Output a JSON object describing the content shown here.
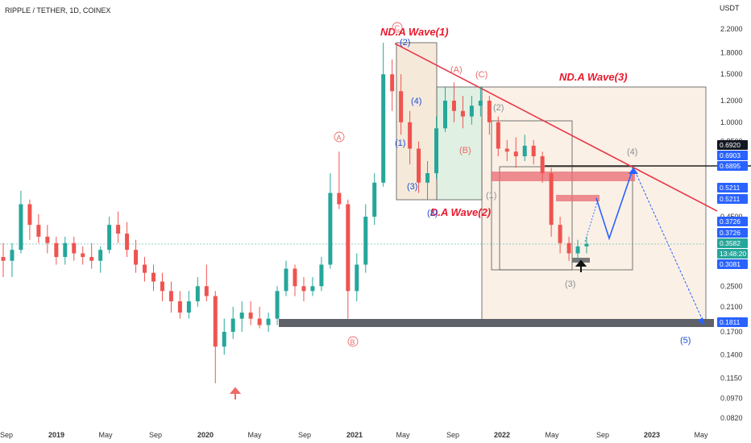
{
  "header": {
    "symbol": "RIPPLE / TETHER, 1D, COINEX",
    "currency": "USDT"
  },
  "chart_data": {
    "type": "candlestick",
    "y_scale": "log",
    "y_ticks": [
      "2.2000",
      "1.8000",
      "1.5000",
      "1.2000",
      "1.0000",
      "0.8500",
      "0.6920",
      "0.6903",
      "0.6895",
      "0.5211",
      "0.5211",
      "0.4500",
      "0.3726",
      "0.3726",
      "0.3582",
      "0.3081",
      "0.2500",
      "0.2100",
      "0.1811",
      "0.1700",
      "0.1400",
      "0.1150",
      "0.0970",
      "0.0820"
    ],
    "y_tick_values": [
      2.2,
      1.8,
      1.5,
      1.2,
      1.0,
      0.85,
      0.692,
      0.6903,
      0.6895,
      0.5211,
      0.5211,
      0.45,
      0.3726,
      0.3726,
      0.3582,
      0.3081,
      0.25,
      0.21,
      0.1811,
      0.17,
      0.14,
      0.115,
      0.097,
      0.082
    ],
    "x_ticks": [
      "Sep",
      "2019",
      "May",
      "Sep",
      "2020",
      "May",
      "Sep",
      "2021",
      "May",
      "Sep",
      "2022",
      "May",
      "Sep",
      "2023",
      "May"
    ],
    "price_badges": [
      {
        "label": "0.6920",
        "value": 0.692,
        "color": "#131722"
      },
      {
        "label": "0.6903",
        "value": 0.6903,
        "color": "#2962ff"
      },
      {
        "label": "0.6895",
        "value": 0.6895,
        "color": "#2962ff"
      },
      {
        "label": "0.5211",
        "value": 0.5211,
        "color": "#2962ff"
      },
      {
        "label": "0.5211",
        "value": 0.5211,
        "color": "#2962ff"
      },
      {
        "label": "0.3726",
        "value": 0.3726,
        "color": "#2962ff"
      },
      {
        "label": "0.3726",
        "value": 0.3726,
        "color": "#2962ff"
      },
      {
        "label": "0.3582",
        "value": 0.3582,
        "color": "#26a69a"
      },
      {
        "label": "13:48:20",
        "value": 0.3582,
        "color": "#26a69a"
      },
      {
        "label": "0.3081",
        "value": 0.3081,
        "color": "#2962ff"
      },
      {
        "label": "0.1811",
        "value": 0.1811,
        "color": "#2962ff"
      }
    ],
    "last_price": 0.3582,
    "candles": [
      {
        "t": 0,
        "o": 0.32,
        "h": 0.36,
        "l": 0.27,
        "c": 0.31
      },
      {
        "t": 1,
        "o": 0.31,
        "h": 0.36,
        "l": 0.27,
        "c": 0.34
      },
      {
        "t": 2,
        "o": 0.34,
        "h": 0.56,
        "l": 0.33,
        "c": 0.5
      },
      {
        "t": 3,
        "o": 0.5,
        "h": 0.52,
        "l": 0.37,
        "c": 0.42
      },
      {
        "t": 4,
        "o": 0.42,
        "h": 0.46,
        "l": 0.36,
        "c": 0.38
      },
      {
        "t": 5,
        "o": 0.38,
        "h": 0.42,
        "l": 0.33,
        "c": 0.36
      },
      {
        "t": 6,
        "o": 0.36,
        "h": 0.38,
        "l": 0.3,
        "c": 0.32
      },
      {
        "t": 7,
        "o": 0.32,
        "h": 0.38,
        "l": 0.3,
        "c": 0.36
      },
      {
        "t": 8,
        "o": 0.36,
        "h": 0.38,
        "l": 0.31,
        "c": 0.33
      },
      {
        "t": 9,
        "o": 0.33,
        "h": 0.35,
        "l": 0.3,
        "c": 0.32
      },
      {
        "t": 10,
        "o": 0.32,
        "h": 0.36,
        "l": 0.29,
        "c": 0.31
      },
      {
        "t": 11,
        "o": 0.31,
        "h": 0.35,
        "l": 0.28,
        "c": 0.34
      },
      {
        "t": 12,
        "o": 0.34,
        "h": 0.45,
        "l": 0.33,
        "c": 0.42
      },
      {
        "t": 13,
        "o": 0.42,
        "h": 0.47,
        "l": 0.36,
        "c": 0.39
      },
      {
        "t": 14,
        "o": 0.39,
        "h": 0.43,
        "l": 0.32,
        "c": 0.34
      },
      {
        "t": 15,
        "o": 0.34,
        "h": 0.37,
        "l": 0.28,
        "c": 0.3
      },
      {
        "t": 16,
        "o": 0.3,
        "h": 0.32,
        "l": 0.26,
        "c": 0.28
      },
      {
        "t": 17,
        "o": 0.28,
        "h": 0.3,
        "l": 0.24,
        "c": 0.26
      },
      {
        "t": 18,
        "o": 0.26,
        "h": 0.28,
        "l": 0.22,
        "c": 0.24
      },
      {
        "t": 19,
        "o": 0.24,
        "h": 0.26,
        "l": 0.2,
        "c": 0.22
      },
      {
        "t": 20,
        "o": 0.22,
        "h": 0.24,
        "l": 0.19,
        "c": 0.2
      },
      {
        "t": 21,
        "o": 0.2,
        "h": 0.24,
        "l": 0.19,
        "c": 0.22
      },
      {
        "t": 22,
        "o": 0.22,
        "h": 0.27,
        "l": 0.21,
        "c": 0.25
      },
      {
        "t": 23,
        "o": 0.25,
        "h": 0.3,
        "l": 0.22,
        "c": 0.23
      },
      {
        "t": 24,
        "o": 0.23,
        "h": 0.24,
        "l": 0.11,
        "c": 0.15
      },
      {
        "t": 25,
        "o": 0.15,
        "h": 0.19,
        "l": 0.14,
        "c": 0.17
      },
      {
        "t": 26,
        "o": 0.17,
        "h": 0.21,
        "l": 0.16,
        "c": 0.19
      },
      {
        "t": 27,
        "o": 0.19,
        "h": 0.22,
        "l": 0.17,
        "c": 0.2
      },
      {
        "t": 28,
        "o": 0.2,
        "h": 0.22,
        "l": 0.18,
        "c": 0.19
      },
      {
        "t": 29,
        "o": 0.19,
        "h": 0.21,
        "l": 0.175,
        "c": 0.18
      },
      {
        "t": 30,
        "o": 0.18,
        "h": 0.2,
        "l": 0.17,
        "c": 0.19
      },
      {
        "t": 31,
        "o": 0.19,
        "h": 0.25,
        "l": 0.18,
        "c": 0.24
      },
      {
        "t": 32,
        "o": 0.24,
        "h": 0.31,
        "l": 0.23,
        "c": 0.29
      },
      {
        "t": 33,
        "o": 0.29,
        "h": 0.3,
        "l": 0.23,
        "c": 0.25
      },
      {
        "t": 34,
        "o": 0.25,
        "h": 0.27,
        "l": 0.22,
        "c": 0.24
      },
      {
        "t": 35,
        "o": 0.24,
        "h": 0.27,
        "l": 0.23,
        "c": 0.25
      },
      {
        "t": 36,
        "o": 0.25,
        "h": 0.32,
        "l": 0.24,
        "c": 0.3
      },
      {
        "t": 37,
        "o": 0.3,
        "h": 0.65,
        "l": 0.29,
        "c": 0.55
      },
      {
        "t": 38,
        "o": 0.55,
        "h": 0.78,
        "l": 0.48,
        "c": 0.5
      },
      {
        "t": 39,
        "o": 0.5,
        "h": 0.52,
        "l": 0.19,
        "c": 0.24
      },
      {
        "t": 40,
        "o": 0.24,
        "h": 0.33,
        "l": 0.22,
        "c": 0.3
      },
      {
        "t": 41,
        "o": 0.3,
        "h": 0.5,
        "l": 0.28,
        "c": 0.45
      },
      {
        "t": 42,
        "o": 0.45,
        "h": 0.65,
        "l": 0.42,
        "c": 0.6
      },
      {
        "t": 43,
        "o": 0.6,
        "h": 1.96,
        "l": 0.58,
        "c": 1.5
      },
      {
        "t": 44,
        "o": 1.5,
        "h": 1.7,
        "l": 1.1,
        "c": 1.3
      },
      {
        "t": 45,
        "o": 1.3,
        "h": 1.5,
        "l": 0.9,
        "c": 1.0
      },
      {
        "t": 46,
        "o": 1.0,
        "h": 1.1,
        "l": 0.7,
        "c": 0.8
      },
      {
        "t": 47,
        "o": 0.8,
        "h": 0.85,
        "l": 0.55,
        "c": 0.6
      },
      {
        "t": 48,
        "o": 0.6,
        "h": 0.72,
        "l": 0.52,
        "c": 0.65
      },
      {
        "t": 49,
        "o": 0.65,
        "h": 1.05,
        "l": 0.62,
        "c": 0.95
      },
      {
        "t": 50,
        "o": 0.95,
        "h": 1.35,
        "l": 0.92,
        "c": 1.2
      },
      {
        "t": 51,
        "o": 1.2,
        "h": 1.4,
        "l": 1.0,
        "c": 1.1
      },
      {
        "t": 52,
        "o": 1.1,
        "h": 1.25,
        "l": 0.95,
        "c": 1.05
      },
      {
        "t": 53,
        "o": 1.05,
        "h": 1.25,
        "l": 0.98,
        "c": 1.15
      },
      {
        "t": 54,
        "o": 1.15,
        "h": 1.35,
        "l": 1.05,
        "c": 1.2
      },
      {
        "t": 55,
        "o": 1.2,
        "h": 1.25,
        "l": 0.9,
        "c": 1.0
      },
      {
        "t": 56,
        "o": 1.0,
        "h": 1.05,
        "l": 0.75,
        "c": 0.8
      },
      {
        "t": 57,
        "o": 0.8,
        "h": 0.86,
        "l": 0.72,
        "c": 0.78
      },
      {
        "t": 58,
        "o": 0.78,
        "h": 0.88,
        "l": 0.68,
        "c": 0.75
      },
      {
        "t": 59,
        "o": 0.75,
        "h": 0.9,
        "l": 0.72,
        "c": 0.82
      },
      {
        "t": 60,
        "o": 0.82,
        "h": 0.86,
        "l": 0.7,
        "c": 0.75
      },
      {
        "t": 61,
        "o": 0.75,
        "h": 0.78,
        "l": 0.6,
        "c": 0.65
      },
      {
        "t": 62,
        "o": 0.65,
        "h": 0.68,
        "l": 0.38,
        "c": 0.42
      },
      {
        "t": 63,
        "o": 0.42,
        "h": 0.45,
        "l": 0.33,
        "c": 0.36
      },
      {
        "t": 64,
        "o": 0.36,
        "h": 0.38,
        "l": 0.31,
        "c": 0.33
      },
      {
        "t": 65,
        "o": 0.33,
        "h": 0.37,
        "l": 0.31,
        "c": 0.35
      },
      {
        "t": 66,
        "o": 0.35,
        "h": 0.38,
        "l": 0.33,
        "c": 0.358
      }
    ]
  },
  "annotations": {
    "wave1": "ND.A  Wave(1)",
    "wave2": "D.A Wave(2)",
    "wave3": "ND.A Wave(3)",
    "blue_2": "(2)",
    "blue_4": "(4)",
    "blue_1": "(1)",
    "blue_3": "(3)",
    "blue_3b": "(3)",
    "pink_A": "(A)",
    "pink_C": "(C)",
    "pink_B": "(B)",
    "gray_2": "(2)",
    "gray_1": "(1)",
    "gray_3": "(3)",
    "gray_4": "(4)",
    "blue_5": "(5)",
    "circle_A": "A",
    "circle_B": "B",
    "circle_C": "C"
  }
}
